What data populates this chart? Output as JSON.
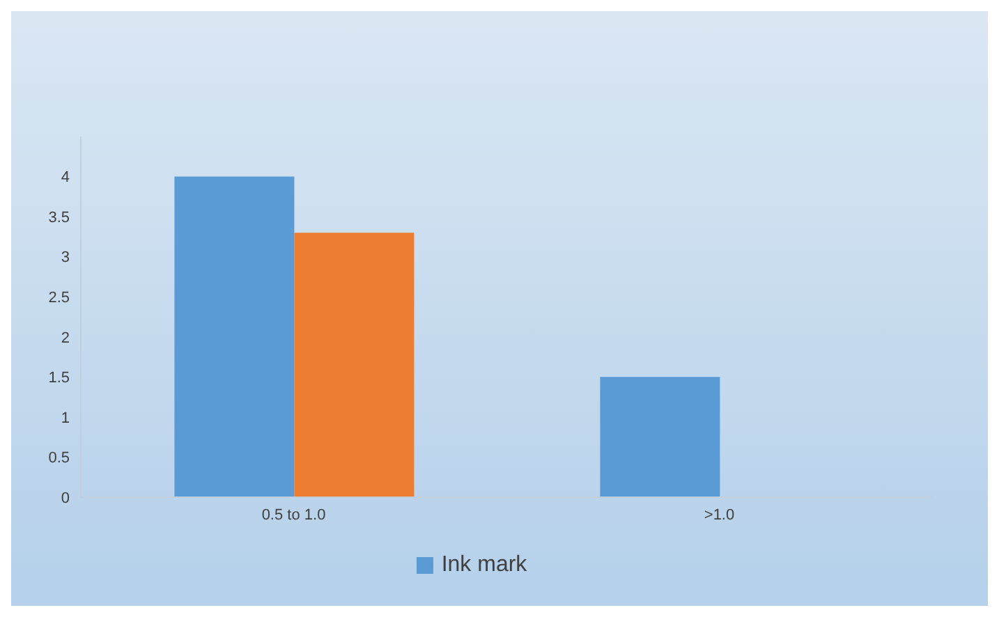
{
  "chart_data": {
    "type": "bar",
    "categories": [
      "0.5 to 1.0",
      ">1.0"
    ],
    "series": [
      {
        "name": "Ink mark",
        "color": "#5b9bd5",
        "values": [
          4,
          1.5
        ]
      },
      {
        "color": "#ed7d31",
        "values": [
          3.3,
          0
        ]
      }
    ],
    "ylim": [
      0,
      4.5
    ],
    "yticks": [
      0,
      0.5,
      1,
      1.5,
      2,
      2.5,
      3,
      3.5,
      4
    ],
    "grid": false,
    "legend": "bottom"
  }
}
